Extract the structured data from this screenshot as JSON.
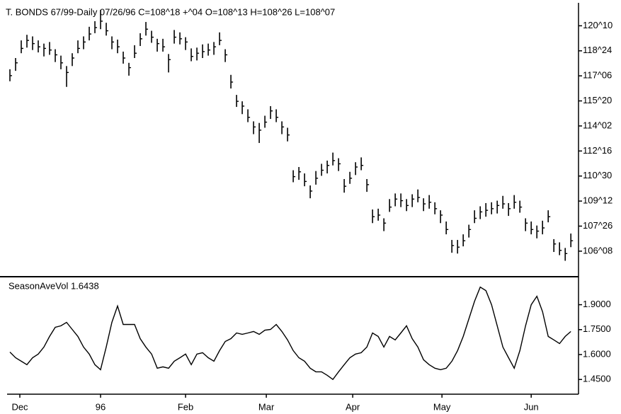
{
  "chart_data": [
    {
      "type": "ohlc",
      "title": "T. BONDS 67/99-Daily   07/26/96 C=108^18  +^04  O=108^13  H=108^26  L=108^07",
      "color": "#000000",
      "xlim": [
        -0.5,
        100.1
      ],
      "ylim": [
        104.7,
        121.7
      ],
      "yticks": [
        {
          "value": 120.3125,
          "label": "120^10"
        },
        {
          "value": 118.75,
          "label": "118^24"
        },
        {
          "value": 117.1875,
          "label": "117^06"
        },
        {
          "value": 115.625,
          "label": "115^20"
        },
        {
          "value": 114.0625,
          "label": "114^02"
        },
        {
          "value": 112.5,
          "label": "112^16"
        },
        {
          "value": 110.9375,
          "label": "110^30"
        },
        {
          "value": 109.375,
          "label": "109^12"
        },
        {
          "value": 107.8125,
          "label": "107^26"
        },
        {
          "value": 106.25,
          "label": "106^08"
        }
      ],
      "high": [
        117.6,
        118.3,
        119.4,
        119.75,
        119.65,
        119.4,
        119.2,
        119.3,
        118.85,
        118.45,
        117.8,
        118.6,
        119.4,
        119.65,
        120.25,
        120.6,
        121.3,
        120.5,
        119.65,
        119.45,
        118.7,
        118.0,
        119.1,
        119.85,
        120.55,
        120.0,
        119.5,
        119.5,
        118.55,
        120.05,
        119.9,
        119.6,
        118.9,
        118.95,
        119.15,
        119.2,
        119.3,
        119.9,
        118.85,
        117.25,
        116.0,
        115.6,
        115.1,
        114.35,
        114.25,
        114.7,
        115.3,
        115.1,
        114.35,
        113.95,
        111.3,
        111.5,
        111.1,
        110.35,
        111.25,
        111.7,
        111.9,
        112.4,
        112.05,
        110.75,
        111.2,
        111.8,
        112.1,
        110.75,
        108.85,
        108.9,
        108.3,
        109.5,
        109.85,
        109.85,
        109.5,
        109.8,
        110.1,
        109.55,
        109.75,
        109.3,
        108.8,
        108.1,
        106.95,
        106.95,
        107.3,
        107.9,
        108.8,
        109.05,
        109.25,
        109.3,
        109.4,
        109.7,
        109.25,
        109.75,
        109.4,
        108.3,
        108.1,
        107.85,
        108.15,
        108.8,
        107.0,
        106.8,
        106.45,
        107.35
      ],
      "low": [
        116.85,
        117.5,
        118.6,
        118.95,
        118.8,
        118.65,
        118.4,
        118.5,
        118.05,
        117.6,
        116.5,
        117.8,
        118.6,
        118.85,
        119.4,
        119.85,
        120.1,
        119.7,
        118.85,
        118.6,
        117.95,
        117.2,
        118.3,
        119.05,
        119.7,
        119.25,
        118.7,
        118.7,
        117.4,
        119.2,
        119.15,
        118.8,
        118.1,
        118.15,
        118.3,
        118.45,
        118.5,
        119.1,
        118.05,
        116.4,
        115.25,
        114.8,
        114.3,
        113.55,
        113.0,
        113.95,
        114.5,
        114.3,
        113.55,
        113.1,
        110.55,
        110.7,
        110.3,
        109.55,
        110.4,
        110.95,
        111.1,
        111.6,
        111.25,
        109.9,
        110.45,
        111.0,
        111.3,
        109.95,
        108.0,
        108.15,
        107.5,
        108.7,
        109.05,
        109.0,
        108.75,
        109.0,
        109.3,
        108.75,
        108.9,
        108.55,
        108.0,
        107.3,
        106.15,
        106.1,
        106.55,
        107.1,
        108.0,
        108.25,
        108.4,
        108.55,
        108.6,
        108.9,
        108.45,
        108.9,
        108.65,
        107.5,
        107.3,
        107.05,
        107.3,
        108.05,
        106.2,
        106.0,
        105.65,
        106.5
      ],
      "close": [
        117.2,
        118.0,
        118.9,
        119.4,
        119.2,
        119.0,
        118.9,
        118.8,
        118.5,
        118.0,
        117.4,
        118.3,
        118.9,
        119.3,
        119.8,
        120.2,
        120.6,
        120.0,
        119.3,
        119.0,
        118.3,
        117.7,
        118.6,
        119.5,
        120.1,
        119.6,
        119.2,
        119.0,
        118.2,
        119.6,
        119.5,
        119.3,
        118.4,
        118.6,
        118.7,
        118.8,
        119.0,
        119.4,
        118.5,
        116.8,
        115.6,
        115.3,
        114.6,
        114.0,
        113.8,
        114.3,
        115.0,
        114.6,
        114.0,
        113.5,
        110.9,
        111.2,
        110.6,
        110.0,
        110.8,
        111.3,
        111.6,
        111.9,
        111.7,
        110.3,
        110.8,
        111.5,
        111.6,
        110.4,
        108.4,
        108.5,
        108.0,
        109.0,
        109.5,
        109.4,
        109.1,
        109.5,
        109.6,
        109.2,
        109.3,
        108.9,
        108.5,
        107.6,
        106.6,
        106.5,
        106.9,
        107.6,
        108.3,
        108.7,
        108.8,
        108.9,
        109.1,
        109.2,
        108.9,
        109.3,
        109.0,
        108.0,
        107.6,
        107.5,
        107.7,
        108.4,
        106.7,
        106.3,
        106.1,
        106.9
      ]
    },
    {
      "type": "line",
      "title": "SeasonAveVol 1.6438",
      "color": "#000000",
      "xlim": [
        -0.5,
        100.1
      ],
      "ylim": [
        1.37,
        2.06
      ],
      "yticks": [
        {
          "value": 1.9,
          "label": "1.9000"
        },
        {
          "value": 1.75,
          "label": "1.7500"
        },
        {
          "value": 1.6,
          "label": "1.6000"
        },
        {
          "value": 1.45,
          "label": "1.4500"
        }
      ],
      "xticks": [
        {
          "value": 1.75,
          "label": "Dec"
        },
        {
          "value": 16,
          "label": "96"
        },
        {
          "value": 31,
          "label": "Feb"
        },
        {
          "value": 45.25,
          "label": "Mar"
        },
        {
          "value": 60.5,
          "label": "Apr"
        },
        {
          "value": 76.25,
          "label": "May"
        },
        {
          "value": 92,
          "label": "Jun"
        }
      ],
      "values": [
        1.615,
        1.581,
        1.56,
        1.539,
        1.581,
        1.603,
        1.645,
        1.709,
        1.764,
        1.773,
        1.794,
        1.751,
        1.709,
        1.645,
        1.603,
        1.539,
        1.509,
        1.645,
        1.794,
        1.892,
        1.781,
        1.781,
        1.781,
        1.696,
        1.645,
        1.603,
        1.518,
        1.526,
        1.518,
        1.56,
        1.581,
        1.603,
        1.539,
        1.603,
        1.611,
        1.581,
        1.56,
        1.624,
        1.679,
        1.696,
        1.73,
        1.722,
        1.73,
        1.739,
        1.722,
        1.747,
        1.751,
        1.781,
        1.739,
        1.688,
        1.624,
        1.581,
        1.56,
        1.518,
        1.496,
        1.496,
        1.475,
        1.45,
        1.496,
        1.539,
        1.581,
        1.603,
        1.611,
        1.645,
        1.73,
        1.709,
        1.645,
        1.709,
        1.688,
        1.73,
        1.773,
        1.696,
        1.645,
        1.569,
        1.539,
        1.518,
        1.509,
        1.518,
        1.56,
        1.624,
        1.709,
        1.815,
        1.921,
        2.006,
        1.985,
        1.9,
        1.773,
        1.645,
        1.581,
        1.518,
        1.624,
        1.773,
        1.9,
        1.951,
        1.858,
        1.709,
        1.688,
        1.666,
        1.709,
        1.739
      ]
    }
  ]
}
